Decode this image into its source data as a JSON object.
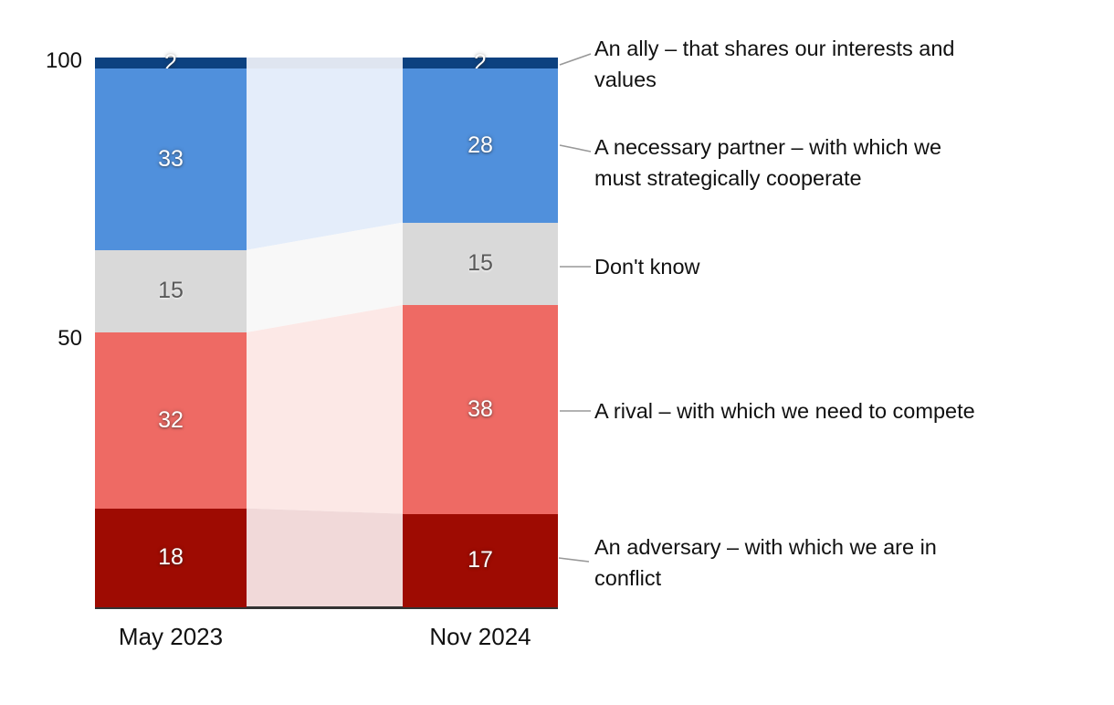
{
  "chart_data": {
    "type": "bar",
    "variant": "stacked-columns-with-connector-bands",
    "title": "",
    "categories": [
      "May 2023",
      "Nov 2024"
    ],
    "series": [
      {
        "name": "An ally – that shares our interests and values",
        "values": [
          2,
          2
        ],
        "color": "#0c4180",
        "connector_color": "#dfe5f0",
        "value_text_color": "#ffffff"
      },
      {
        "name": "A necessary partner – with which we must strategically cooperate",
        "values": [
          33,
          28
        ],
        "color": "#5090dc",
        "connector_color": "#e4edfa",
        "value_text_color": "#ffffff"
      },
      {
        "name": "Don't know",
        "values": [
          15,
          15
        ],
        "color": "#d9d9d9",
        "connector_color": "#f8f8f8",
        "value_text_color": "#595959"
      },
      {
        "name": "A rival – with which we need to compete",
        "values": [
          32,
          38
        ],
        "color": "#ee6a64",
        "connector_color": "#fce8e6",
        "value_text_color": "#ffffff"
      },
      {
        "name": "An adversary – with which we are in conflict",
        "values": [
          18,
          17
        ],
        "color": "#9e0b02",
        "connector_color": "#f1d9d9",
        "value_text_color": "#ffffff"
      }
    ],
    "ylim": [
      0,
      100
    ],
    "y_ticks": [
      "100",
      "50"
    ],
    "grid": false,
    "legend_position": "right-annotations",
    "axis_line_color": "#333333",
    "leader_line_color": "#999999"
  },
  "annotations": [
    {
      "text": "An ally – that shares our interests and\nvalues"
    },
    {
      "text": "A necessary partner – with which we\nmust strategically cooperate"
    },
    {
      "text": "Don't know"
    },
    {
      "text": "A rival – with which we need to compete"
    },
    {
      "text": "An adversary – with which we are in\nconflict"
    }
  ]
}
